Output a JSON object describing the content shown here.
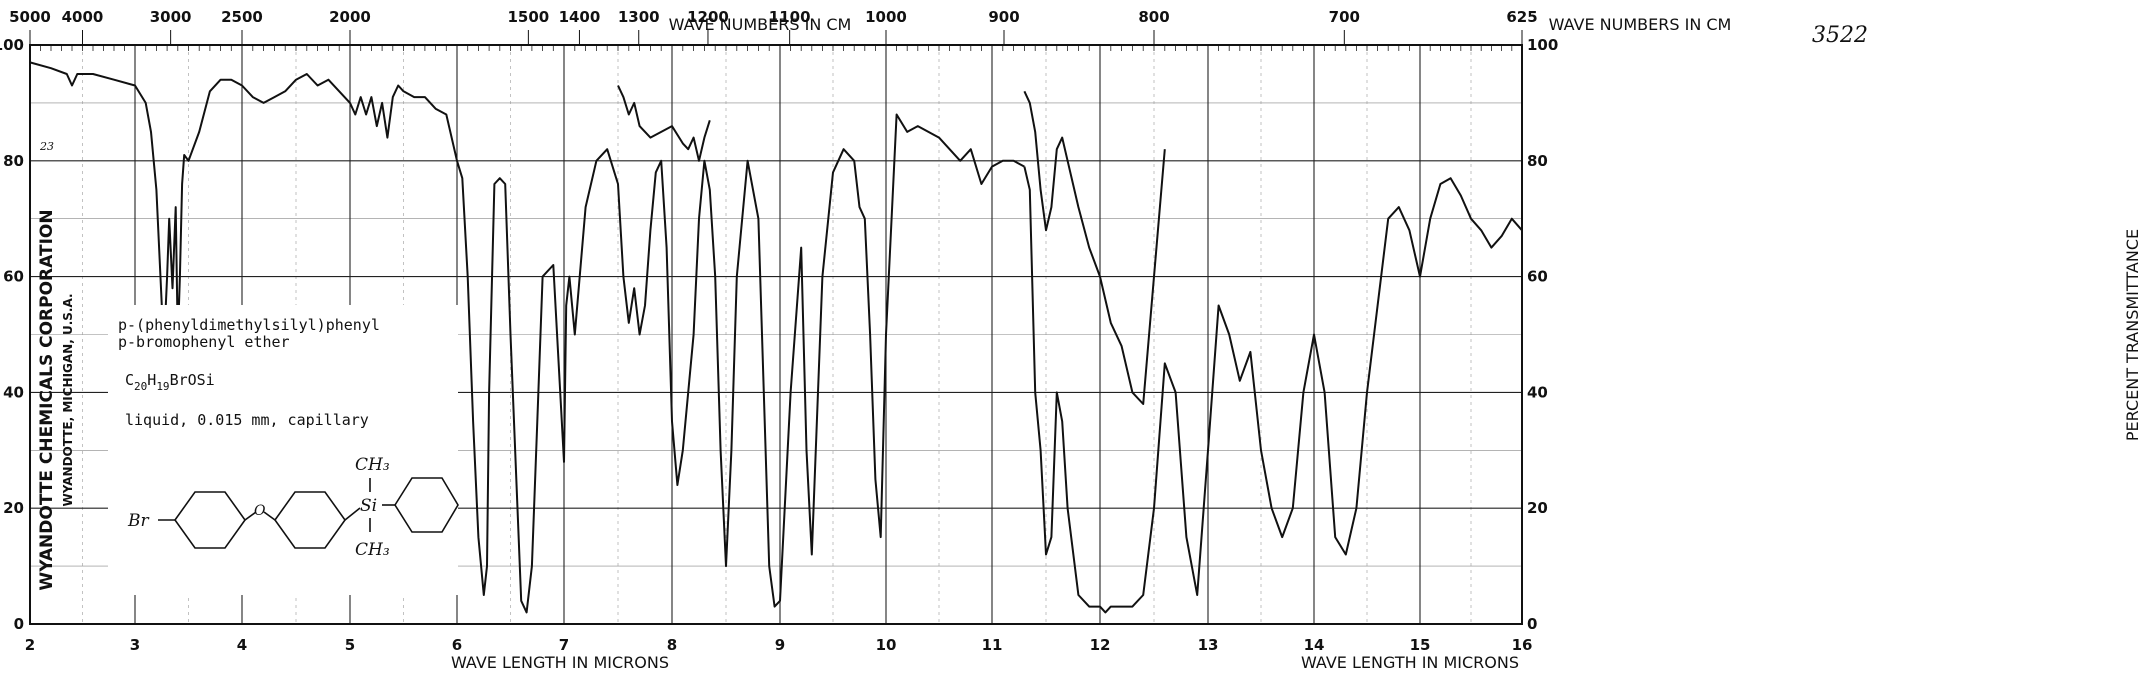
{
  "header": {
    "top_axis_title_left": "WAVE NUMBERS IN CM",
    "top_axis_title_right": "WAVE NUMBERS IN CM",
    "spectrum_number": "3522",
    "trace_note": "23"
  },
  "compound": {
    "name_line1": "p-(phenyldimethylsilyl)phenyl",
    "name_line2": "p-bromophenyl ether",
    "formula_base": "C",
    "formula_c": "20",
    "formula_h_label": "H",
    "formula_h": "19",
    "formula_rest": "BrOSi",
    "sample": "liquid, 0.015 mm, capillary",
    "structure": {
      "br": "Br",
      "o": "O",
      "si": "Si",
      "ch3_top": "CH₃",
      "ch3_bottom": "CH₃"
    }
  },
  "company": {
    "name": "WYANDOTTE CHEMICALS CORPORATION",
    "location": "WYANDOTTE, MICHIGAN, U.S.A."
  },
  "chart_data": {
    "type": "line",
    "xlabel": "WAVE LENGTH IN MICRONS",
    "ylabel_right": "PERCENT TRANSMITTANCE",
    "xlim": [
      2,
      16
    ],
    "ylim": [
      0,
      100
    ],
    "x_ticks": [
      "2",
      "3",
      "4",
      "5",
      "6",
      "7",
      "8",
      "9",
      "10",
      "11",
      "12",
      "13",
      "14",
      "15",
      "16"
    ],
    "y_ticks_left": [
      "0",
      "20",
      "40",
      "60",
      "80",
      "100"
    ],
    "y_ticks_right": [
      "0",
      "20",
      "40",
      "60",
      "80",
      "100"
    ],
    "wavenumber_labels_left": [
      {
        "label": "5000",
        "micron": 2.0
      },
      {
        "label": "4000",
        "micron": 2.5
      },
      {
        "label": "3000",
        "micron": 3.333
      },
      {
        "label": "2500",
        "micron": 4.0
      },
      {
        "label": "2000",
        "micron": 5.0
      }
    ],
    "wavenumber_labels_right": [
      {
        "label": "1500",
        "micron": 6.667
      },
      {
        "label": "1400",
        "micron": 7.143
      },
      {
        "label": "1300",
        "micron": 7.692
      },
      {
        "label": "1200",
        "micron": 8.333
      },
      {
        "label": "1100",
        "micron": 9.091
      },
      {
        "label": "1000",
        "micron": 10.0
      },
      {
        "label": "900",
        "micron": 11.111
      },
      {
        "label": "800",
        "micron": 12.5
      },
      {
        "label": "700",
        "micron": 14.286
      },
      {
        "label": "625",
        "micron": 16.0
      }
    ],
    "grid": true,
    "series": [
      {
        "segment": "main",
        "x": [
          2.0,
          2.2,
          2.35,
          2.4,
          2.45,
          2.6,
          2.8,
          3.0,
          3.1,
          3.15,
          3.2,
          3.25,
          3.28,
          3.3,
          3.32,
          3.35,
          3.38,
          3.4,
          3.42,
          3.44,
          3.46,
          3.5,
          3.6,
          3.7,
          3.8,
          3.9,
          4.0,
          4.1,
          4.2,
          4.3,
          4.4,
          4.5,
          4.6,
          4.7,
          4.8,
          4.9,
          5.0,
          5.05,
          5.1,
          5.15,
          5.2,
          5.25,
          5.3,
          5.35,
          5.4,
          5.45,
          5.5,
          5.6,
          5.7,
          5.8,
          5.9,
          6.0,
          6.05,
          6.1,
          6.15,
          6.2,
          6.25,
          6.28,
          6.3,
          6.35,
          6.4,
          6.45,
          6.5,
          6.6,
          6.65,
          6.7,
          6.75,
          6.8,
          6.9,
          7.0,
          7.02,
          7.05,
          7.1,
          7.2,
          7.3,
          7.4,
          7.5,
          7.55,
          7.6,
          7.65,
          7.7,
          7.75,
          7.8,
          7.85,
          7.9,
          7.95,
          8.0,
          8.05,
          8.1,
          8.15,
          8.2,
          8.25,
          8.3,
          8.35,
          8.4,
          8.45,
          8.5,
          8.55,
          8.6,
          8.7,
          8.8,
          8.9,
          8.95,
          9.0,
          9.1,
          9.2,
          9.25,
          9.3,
          9.4,
          9.5,
          9.6,
          9.7,
          9.75,
          9.8,
          9.85,
          9.9,
          9.95,
          10.0,
          10.1,
          10.2,
          10.3,
          10.5,
          10.7,
          10.8,
          10.9,
          11.0,
          11.1,
          11.2,
          11.3
        ],
        "y": [
          97,
          96,
          95,
          93,
          95,
          95,
          94,
          93,
          90,
          85,
          75,
          55,
          52,
          60,
          70,
          58,
          72,
          49,
          60,
          76,
          81,
          80,
          85,
          92,
          94,
          94,
          93,
          91,
          90,
          91,
          92,
          94,
          95,
          93,
          94,
          92,
          90,
          88,
          91,
          88,
          91,
          86,
          90,
          84,
          91,
          93,
          92,
          91,
          91,
          89,
          88,
          80,
          77,
          60,
          35,
          15,
          5,
          10,
          40,
          76,
          77,
          76,
          50,
          4,
          2,
          10,
          35,
          60,
          62,
          28,
          55,
          60,
          50,
          72,
          80,
          82,
          76,
          60,
          52,
          58,
          50,
          55,
          68,
          78,
          80,
          65,
          35,
          24,
          30,
          40,
          50,
          70,
          80,
          75,
          60,
          30,
          10,
          30,
          60,
          80,
          70,
          10,
          3,
          4,
          40,
          65,
          30,
          12,
          60,
          78,
          82,
          80,
          72,
          70,
          50,
          25,
          15,
          50,
          88,
          85,
          86,
          84,
          80,
          82,
          76,
          79,
          80,
          80,
          79
        ],
        "color": "#111111"
      },
      {
        "segment": "overlay-7.5-8.35",
        "x": [
          7.5,
          7.55,
          7.6,
          7.65,
          7.7,
          7.8,
          7.9,
          8.0,
          8.1,
          8.15,
          8.2,
          8.25,
          8.3,
          8.35
        ],
        "y": [
          93,
          91,
          88,
          90,
          86,
          84,
          85,
          86,
          83,
          82,
          84,
          80,
          84,
          87
        ],
        "color": "#111111"
      },
      {
        "segment": "main-continued",
        "x": [
          11.3,
          11.35,
          11.4,
          11.45,
          11.5,
          11.55,
          11.6,
          11.65,
          11.7,
          11.8,
          11.9,
          12.0,
          12.05,
          12.1,
          12.2,
          12.3,
          12.4,
          12.5,
          12.6,
          12.7,
          12.8,
          12.9,
          13.0,
          13.1,
          13.2,
          13.3,
          13.4,
          13.5,
          13.6,
          13.7,
          13.8,
          13.9,
          14.0,
          14.1,
          14.2,
          14.3,
          14.4,
          14.5,
          14.6,
          14.7,
          14.8,
          14.9,
          15.0,
          15.1,
          15.2,
          15.3,
          15.4,
          15.5,
          15.6,
          15.7,
          15.8,
          15.9,
          16.0
        ],
        "y": [
          79,
          75,
          40,
          30,
          12,
          15,
          40,
          35,
          20,
          5,
          3,
          3,
          2,
          3,
          3,
          3,
          5,
          20,
          45,
          40,
          15,
          5,
          30,
          55,
          50,
          42,
          47,
          30,
          20,
          15,
          20,
          40,
          50,
          40,
          15,
          12,
          20,
          40,
          55,
          70,
          72,
          68,
          60,
          70,
          76,
          77,
          74,
          70,
          68,
          65,
          67,
          70,
          68
        ],
        "color": "#111111"
      },
      {
        "segment": "overlay-11.3-12.6",
        "x": [
          11.3,
          11.35,
          11.4,
          11.45,
          11.5,
          11.55,
          11.6,
          11.65,
          11.7,
          11.8,
          11.9,
          12.0,
          12.1,
          12.2,
          12.3,
          12.4,
          12.5,
          12.6
        ],
        "y": [
          92,
          90,
          85,
          75,
          68,
          72,
          82,
          84,
          80,
          72,
          65,
          60,
          52,
          48,
          40,
          38,
          60,
          82
        ],
        "color": "#111111"
      }
    ]
  }
}
